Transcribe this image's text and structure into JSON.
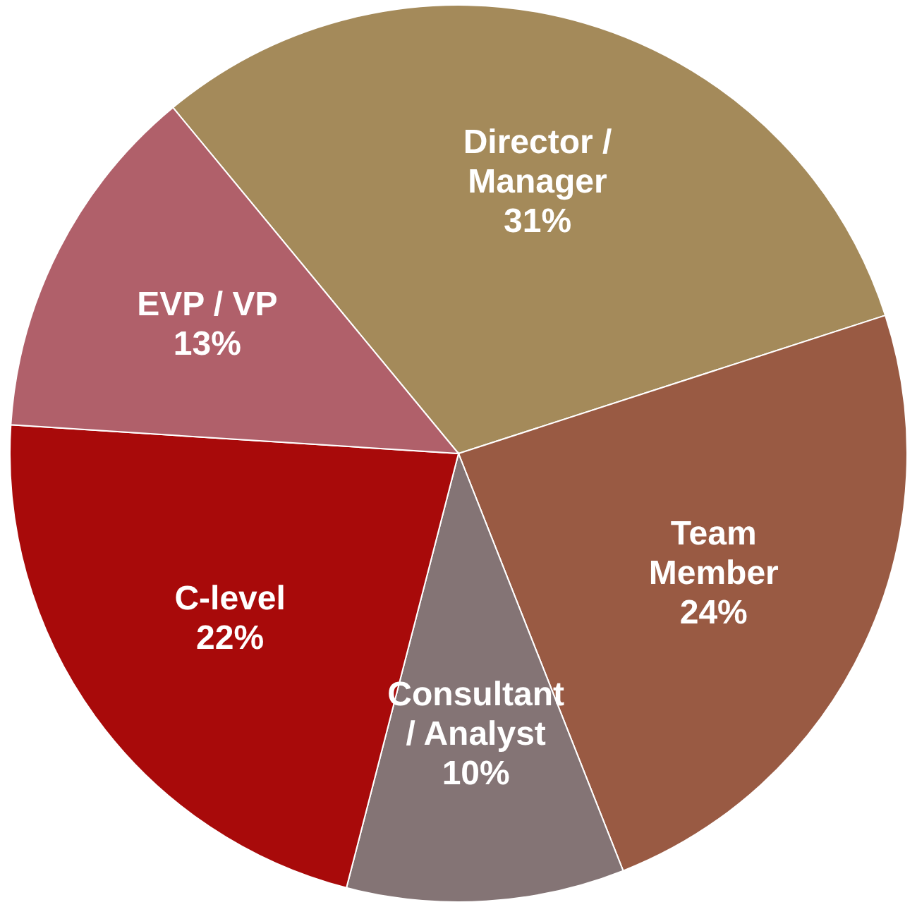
{
  "chart_data": {
    "type": "pie",
    "categories": [
      "Director / Manager",
      "Team Member",
      "Consultant / Analyst",
      "C-level",
      "EVP / VP"
    ],
    "values": [
      31,
      24,
      10,
      22,
      13
    ],
    "colors": [
      "#a48a5a",
      "#995a43",
      "#847475",
      "#a80a0a",
      "#b0606a"
    ],
    "value_labels": [
      "31%",
      "24%",
      "10%",
      "22%",
      "13%"
    ],
    "data_labels": true,
    "legend": false
  }
}
